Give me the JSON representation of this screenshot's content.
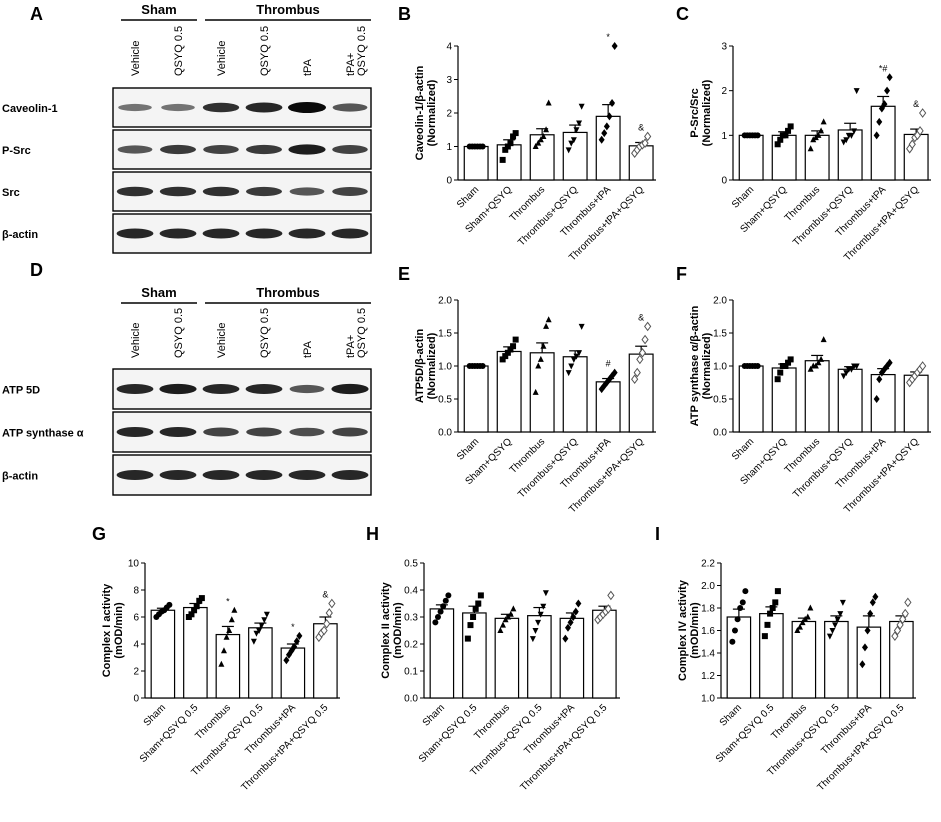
{
  "panels": [
    {
      "letter": "A"
    },
    {
      "letter": "B"
    },
    {
      "letter": "C"
    },
    {
      "letter": "D"
    },
    {
      "letter": "E"
    },
    {
      "letter": "F"
    },
    {
      "letter": "G"
    },
    {
      "letter": "H"
    },
    {
      "letter": "I"
    }
  ],
  "blot_top": {
    "groups": [
      "Sham",
      "Thrombus"
    ],
    "lanes": [
      "Vehicle",
      "QSYQ 0.5",
      "Vehicle",
      "QSYQ 0.5",
      "tPA",
      "tPA+\nQSYQ 0.5"
    ],
    "bands": [
      {
        "label": "Caveolin-1",
        "intensity": [
          0.45,
          0.45,
          0.8,
          0.85,
          1.0,
          0.6
        ]
      },
      {
        "label": "P-Src",
        "intensity": [
          0.6,
          0.75,
          0.7,
          0.75,
          0.9,
          0.7
        ]
      },
      {
        "label": "Src",
        "intensity": [
          0.8,
          0.8,
          0.8,
          0.75,
          0.6,
          0.7
        ]
      },
      {
        "label": "β-actin",
        "intensity": [
          0.85,
          0.85,
          0.85,
          0.85,
          0.85,
          0.85
        ]
      }
    ]
  },
  "blot_bottom": {
    "groups": [
      "Sham",
      "Thrombus"
    ],
    "lanes": [
      "Vehicle",
      "QSYQ 0.5",
      "Vehicle",
      "QSYQ 0.5",
      "tPA",
      "tPA+\nQSYQ 0.5"
    ],
    "bands": [
      {
        "label": "ATP 5D",
        "intensity": [
          0.85,
          0.9,
          0.85,
          0.85,
          0.6,
          0.9
        ]
      },
      {
        "label": "ATP synthase α",
        "intensity": [
          0.85,
          0.85,
          0.7,
          0.7,
          0.65,
          0.7
        ]
      },
      {
        "label": "β-actin",
        "intensity": [
          0.85,
          0.85,
          0.85,
          0.85,
          0.85,
          0.85
        ]
      }
    ]
  },
  "chart_data": [
    {
      "id": "B",
      "type": "bar",
      "ylabel": "Caveolin-1/β-actin\n(Normalized)",
      "ylim": [
        0,
        4
      ],
      "yticks": [
        "0",
        "1",
        "2",
        "3",
        "4"
      ],
      "categories": [
        "Sham",
        "Sham+QSYQ",
        "Thrombus",
        "Thrombus+QSYQ",
        "Thrombus+tPA",
        "Thrombus+tPA+QSYQ"
      ],
      "values": [
        1.0,
        1.05,
        1.35,
        1.42,
        1.9,
        1.02
      ],
      "sem": [
        0.01,
        0.15,
        0.18,
        0.22,
        0.35,
        0.1
      ],
      "points": [
        [
          1,
          1,
          1,
          1,
          1,
          1
        ],
        [
          0.6,
          0.9,
          1.0,
          1.1,
          1.3,
          1.4
        ],
        [
          1.0,
          1.1,
          1.2,
          1.3,
          1.5,
          2.3
        ],
        [
          0.9,
          1.1,
          1.2,
          1.5,
          1.7,
          2.2
        ],
        [
          1.2,
          1.4,
          1.6,
          1.9,
          2.3,
          4.0
        ],
        [
          0.8,
          0.9,
          1.0,
          1.05,
          1.1,
          1.3
        ]
      ],
      "annotations": [
        "",
        "",
        "",
        "",
        "*",
        "&"
      ]
    },
    {
      "id": "C",
      "type": "bar",
      "ylabel": "P-Src/Src\n(Normalized)",
      "ylim": [
        0,
        3
      ],
      "yticks": [
        "0",
        "1",
        "2",
        "3"
      ],
      "categories": [
        "Sham",
        "Sham+QSYQ",
        "Thrombus",
        "Thrombus+QSYQ",
        "Thrombus+tPA",
        "Thrombus+tPA+QSYQ"
      ],
      "values": [
        1.0,
        1.0,
        1.0,
        1.12,
        1.65,
        1.02
      ],
      "sem": [
        0.01,
        0.08,
        0.1,
        0.15,
        0.22,
        0.12
      ],
      "points": [
        [
          1,
          1,
          1,
          1,
          1,
          1
        ],
        [
          0.8,
          0.9,
          1.0,
          1.0,
          1.1,
          1.2
        ],
        [
          0.7,
          0.9,
          0.95,
          1.0,
          1.1,
          1.3
        ],
        [
          0.85,
          0.9,
          1.0,
          1.0,
          1.1,
          2.0
        ],
        [
          1.0,
          1.3,
          1.6,
          1.7,
          2.0,
          2.3
        ],
        [
          0.7,
          0.8,
          0.95,
          1.0,
          1.1,
          1.5
        ]
      ],
      "annotations": [
        "",
        "",
        "",
        "",
        "*#",
        "&"
      ]
    },
    {
      "id": "E",
      "type": "bar",
      "ylabel": "ATP5D/β-actin\n(Normalized)",
      "ylim": [
        0,
        2.0
      ],
      "yticks": [
        "0.0",
        "0.5",
        "1.0",
        "1.5",
        "2.0"
      ],
      "categories": [
        "Sham",
        "Sham+QSYQ",
        "Thrombus",
        "Thrombus+QSYQ",
        "Thrombus+tPA",
        "Thrombus+tPA+QSYQ"
      ],
      "values": [
        1.0,
        1.22,
        1.2,
        1.14,
        0.76,
        1.18
      ],
      "sem": [
        0.01,
        0.07,
        0.15,
        0.09,
        0.05,
        0.12
      ],
      "points": [
        [
          1,
          1,
          1,
          1,
          1,
          1
        ],
        [
          1.1,
          1.15,
          1.2,
          1.25,
          1.3,
          1.4
        ],
        [
          0.6,
          1.0,
          1.1,
          1.3,
          1.6,
          1.7
        ],
        [
          0.9,
          1.0,
          1.1,
          1.15,
          1.2,
          1.6
        ],
        [
          0.65,
          0.7,
          0.75,
          0.8,
          0.85,
          0.9
        ],
        [
          0.8,
          0.9,
          1.1,
          1.2,
          1.4,
          1.6
        ]
      ],
      "annotations": [
        "",
        "",
        "",
        "",
        "#",
        "&"
      ]
    },
    {
      "id": "F",
      "type": "bar",
      "ylabel": "ATP synthase α/β-actin\n(Normalized)",
      "ylim": [
        0,
        2.0
      ],
      "yticks": [
        "0.0",
        "0.5",
        "1.0",
        "1.5",
        "2.0"
      ],
      "categories": [
        "Sham",
        "Sham+QSYQ",
        "Thrombus",
        "Thrombus+QSYQ",
        "Thrombus+tPA",
        "Thrombus+tPA+QSYQ"
      ],
      "values": [
        1.0,
        0.97,
        1.08,
        0.95,
        0.87,
        0.86
      ],
      "sem": [
        0.01,
        0.06,
        0.08,
        0.04,
        0.09,
        0.05
      ],
      "points": [
        [
          1,
          1,
          1,
          1,
          1,
          1
        ],
        [
          0.8,
          0.9,
          1.0,
          1.0,
          1.05,
          1.1
        ],
        [
          0.95,
          1.0,
          1.0,
          1.05,
          1.1,
          1.4
        ],
        [
          0.85,
          0.9,
          0.95,
          0.95,
          1.0,
          1.0
        ],
        [
          0.5,
          0.8,
          0.9,
          0.95,
          1.0,
          1.05
        ],
        [
          0.75,
          0.8,
          0.85,
          0.9,
          0.95,
          1.0
        ]
      ],
      "annotations": [
        "",
        "",
        "",
        "",
        "",
        ""
      ]
    },
    {
      "id": "G",
      "type": "bar",
      "ylabel": "Complex I activity\n(mOD/min)",
      "ylim": [
        0,
        10
      ],
      "yticks": [
        "0",
        "2",
        "4",
        "6",
        "8",
        "10"
      ],
      "categories": [
        "Sham",
        "Sham+QSYQ 0.5",
        "Thrombus",
        "Thrombus+QSYQ 0.5",
        "Thrombus+tPA",
        "Thrombus+tPA+QSYQ 0.5"
      ],
      "values": [
        6.5,
        6.7,
        4.7,
        5.2,
        3.7,
        5.5
      ],
      "sem": [
        0.15,
        0.3,
        0.6,
        0.35,
        0.3,
        0.5
      ],
      "points": [
        [
          6.0,
          6.2,
          6.4,
          6.5,
          6.7,
          6.9
        ],
        [
          6.0,
          6.2,
          6.5,
          6.8,
          7.2,
          7.4
        ],
        [
          2.5,
          3.5,
          4.5,
          5.0,
          5.8,
          6.5
        ],
        [
          4.2,
          4.8,
          5.0,
          5.4,
          5.8,
          6.2
        ],
        [
          2.8,
          3.2,
          3.5,
          3.8,
          4.2,
          4.6
        ],
        [
          4.5,
          4.8,
          5.0,
          5.5,
          6.3,
          7.0
        ]
      ],
      "annotations": [
        "",
        "",
        "*",
        "",
        "*",
        "&"
      ]
    },
    {
      "id": "H",
      "type": "bar",
      "ylabel": "Complex II activity\n(mOD/min)",
      "ylim": [
        0,
        0.5
      ],
      "yticks": [
        "0.0",
        "0.1",
        "0.2",
        "0.3",
        "0.4",
        "0.5"
      ],
      "categories": [
        "Sham",
        "Sham+QSYQ 0.5",
        "Thrombus",
        "Thrombus+QSYQ 0.5",
        "Thrombus+tPA",
        "Thrombus+tPA+QSYQ 0.5"
      ],
      "values": [
        0.33,
        0.315,
        0.295,
        0.305,
        0.295,
        0.325
      ],
      "sem": [
        0.015,
        0.025,
        0.015,
        0.03,
        0.02,
        0.015
      ],
      "points": [
        [
          0.28,
          0.3,
          0.32,
          0.34,
          0.36,
          0.38
        ],
        [
          0.22,
          0.27,
          0.3,
          0.33,
          0.35,
          0.38
        ],
        [
          0.25,
          0.27,
          0.29,
          0.3,
          0.31,
          0.33
        ],
        [
          0.22,
          0.25,
          0.28,
          0.31,
          0.34,
          0.39
        ],
        [
          0.22,
          0.26,
          0.28,
          0.3,
          0.32,
          0.35
        ],
        [
          0.29,
          0.3,
          0.31,
          0.32,
          0.33,
          0.38
        ]
      ],
      "annotations": [
        "",
        "",
        "",
        "",
        "",
        ""
      ]
    },
    {
      "id": "I",
      "type": "bar",
      "ylabel": "Complex IV activity\n(mOD/min)",
      "ylim": [
        1.0,
        2.2
      ],
      "yticks": [
        "1.0",
        "1.2",
        "1.4",
        "1.6",
        "1.8",
        "2.0",
        "2.2"
      ],
      "categories": [
        "Sham",
        "Sham+QSYQ 0.5",
        "Thrombus",
        "Thrombus+QSYQ 0.5",
        "Thrombus+tPA",
        "Thrombus+tPA+QSYQ 0.5"
      ],
      "values": [
        1.72,
        1.75,
        1.68,
        1.68,
        1.63,
        1.68
      ],
      "sem": [
        0.07,
        0.06,
        0.03,
        0.05,
        0.1,
        0.05
      ],
      "points": [
        [
          1.5,
          1.6,
          1.7,
          1.8,
          1.85,
          1.95
        ],
        [
          1.55,
          1.65,
          1.75,
          1.8,
          1.85,
          1.95
        ],
        [
          1.6,
          1.63,
          1.67,
          1.7,
          1.72,
          1.8
        ],
        [
          1.55,
          1.6,
          1.65,
          1.7,
          1.75,
          1.85
        ],
        [
          1.3,
          1.45,
          1.6,
          1.75,
          1.85,
          1.9
        ],
        [
          1.55,
          1.6,
          1.65,
          1.7,
          1.75,
          1.85
        ]
      ],
      "annotations": [
        "",
        "",
        "",
        "",
        "",
        ""
      ]
    }
  ]
}
